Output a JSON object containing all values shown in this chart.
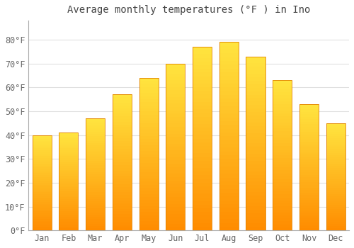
{
  "title": "Average monthly temperatures (°F ) in Ino",
  "months": [
    "Jan",
    "Feb",
    "Mar",
    "Apr",
    "May",
    "Jun",
    "Jul",
    "Aug",
    "Sep",
    "Oct",
    "Nov",
    "Dec"
  ],
  "values": [
    40,
    41,
    47,
    57,
    64,
    70,
    77,
    79,
    73,
    63,
    53,
    45
  ],
  "bar_color_top": "#FFA500",
  "bar_color_bottom": "#FFD060",
  "bar_edge_color": "#E08000",
  "background_color": "#FFFFFF",
  "grid_color": "#E0E0E0",
  "ylim": [
    0,
    88
  ],
  "yticks": [
    0,
    10,
    20,
    30,
    40,
    50,
    60,
    70,
    80
  ],
  "title_fontsize": 10,
  "tick_fontsize": 8.5,
  "tick_color": "#666666",
  "title_color": "#444444"
}
